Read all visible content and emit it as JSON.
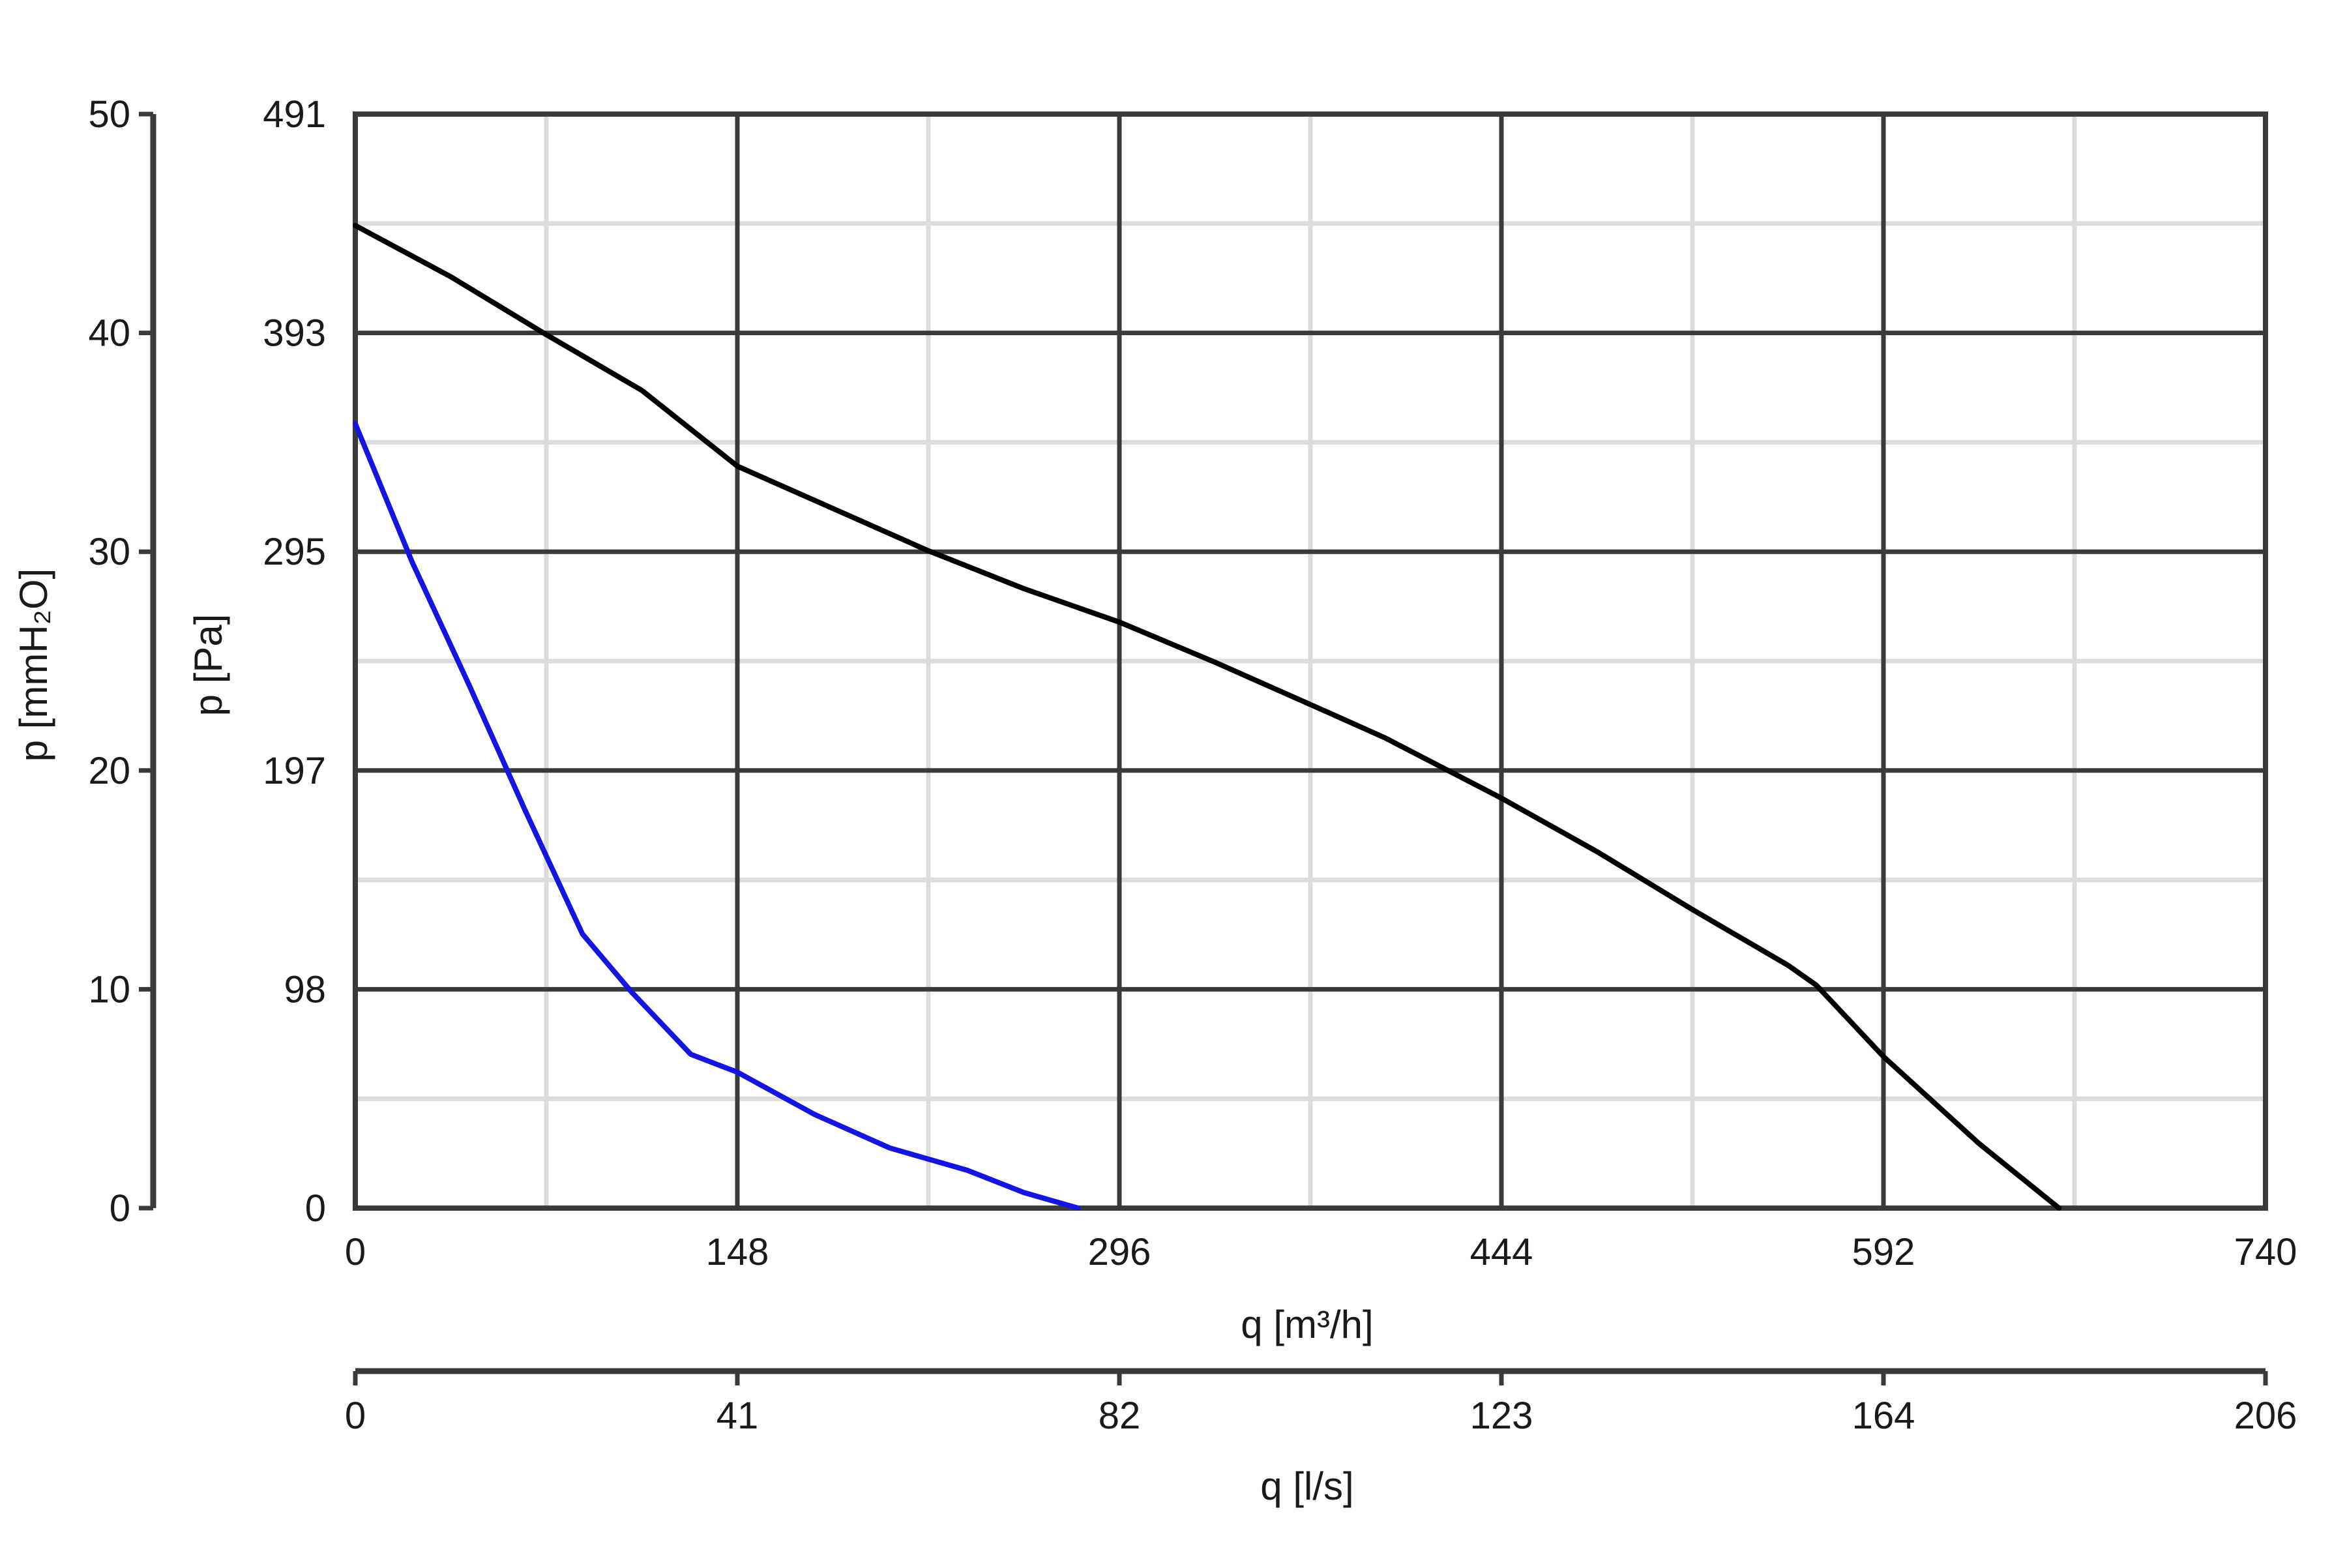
{
  "chart_data": {
    "type": "line",
    "x_axis_primary": {
      "label": "q [m³/h]",
      "range": [
        0,
        740
      ],
      "ticks": [
        "0",
        "148",
        "296",
        "444",
        "592",
        "740"
      ]
    },
    "x_axis_secondary": {
      "label": "q [l/s]",
      "range": [
        0,
        206
      ],
      "ticks": [
        "0",
        "41",
        "82",
        "123",
        "164",
        "206"
      ]
    },
    "y_axis_primary": {
      "label": "p [Pa]",
      "range": [
        0,
        491
      ],
      "ticks": [
        "0",
        "98",
        "197",
        "295",
        "393",
        "491"
      ]
    },
    "y_axis_secondary": {
      "label": "p [mmH₂O]",
      "range": [
        0,
        50
      ],
      "ticks": [
        "0",
        "10",
        "20",
        "30",
        "40",
        "50"
      ]
    },
    "grid": true,
    "series": [
      {
        "color": "#000000",
        "points": [
          [
            0,
            441
          ],
          [
            37,
            418
          ],
          [
            74,
            392
          ],
          [
            111,
            367
          ],
          [
            148,
            333
          ],
          [
            185,
            314
          ],
          [
            222,
            295
          ],
          [
            259,
            278
          ],
          [
            296,
            263
          ],
          [
            333,
            245
          ],
          [
            370,
            226
          ],
          [
            399,
            211
          ],
          [
            444,
            184
          ],
          [
            481,
            160
          ],
          [
            518,
            134
          ],
          [
            555,
            109
          ],
          [
            566,
            100
          ],
          [
            592,
            68
          ],
          [
            629,
            29
          ],
          [
            660,
            0
          ]
        ]
      },
      {
        "color": "#1515e0",
        "points": [
          [
            0,
            352
          ],
          [
            22,
            290
          ],
          [
            44,
            235
          ],
          [
            66,
            178
          ],
          [
            88,
            123
          ],
          [
            107,
            97
          ],
          [
            130,
            69
          ],
          [
            148,
            61
          ],
          [
            178,
            42
          ],
          [
            207,
            27
          ],
          [
            237,
            17
          ],
          [
            259,
            7
          ],
          [
            280,
            0
          ]
        ]
      }
    ]
  }
}
